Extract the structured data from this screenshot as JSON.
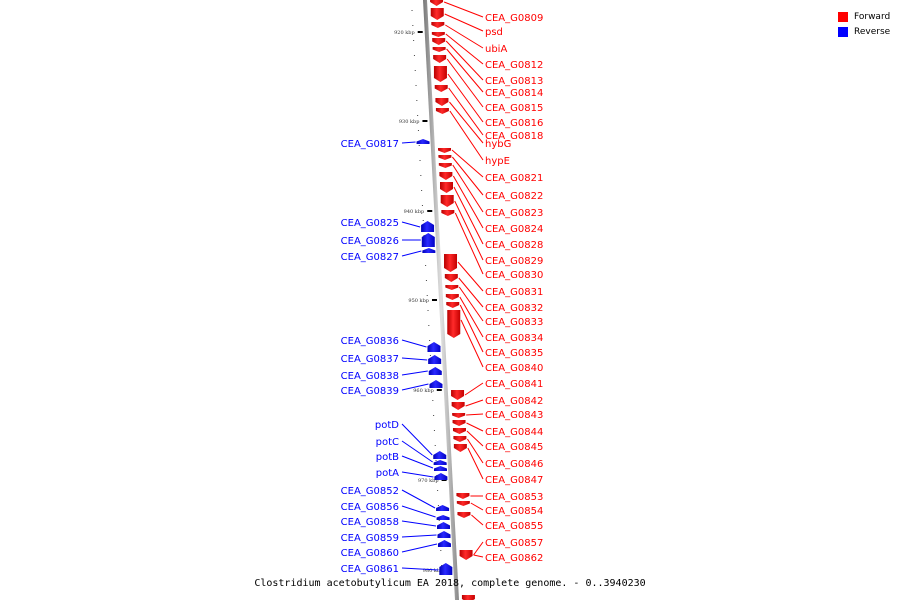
{
  "legend": {
    "forward_label": "Forward",
    "reverse_label": "Reverse",
    "forward_color": "#ff0000",
    "reverse_color": "#0000ff"
  },
  "caption": "Clostridium acetobutylicum EA 2018, complete genome. - 0..3940230",
  "ticks": [
    "920 kbp",
    "930 kbp",
    "940 kbp",
    "950 kbp",
    "960 kbp",
    "970 kbp",
    "980 kbp"
  ],
  "forward_genes": [
    "CEA_G0809",
    "psd",
    "ubiA",
    "CEA_G0812",
    "CEA_G0813",
    "CEA_G0814",
    "CEA_G0815",
    "CEA_G0816",
    "CEA_G0818",
    "hybG",
    "hypE",
    "CEA_G0821",
    "CEA_G0822",
    "CEA_G0823",
    "CEA_G0824",
    "CEA_G0828",
    "CEA_G0829",
    "CEA_G0830",
    "CEA_G0831",
    "CEA_G0832",
    "CEA_G0833",
    "CEA_G0834",
    "CEA_G0835",
    "CEA_G0840",
    "CEA_G0841",
    "CEA_G0842",
    "CEA_G0843",
    "CEA_G0844",
    "CEA_G0845",
    "CEA_G0846",
    "CEA_G0847",
    "CEA_G0853",
    "CEA_G0854",
    "CEA_G0855",
    "CEA_G0857",
    "CEA_G0862"
  ],
  "reverse_genes": [
    "CEA_G0817",
    "CEA_G0825",
    "CEA_G0826",
    "CEA_G0827",
    "CEA_G0836",
    "CEA_G0837",
    "CEA_G0838",
    "CEA_G0839",
    "potD",
    "potC",
    "potB",
    "potA",
    "CEA_G0852",
    "CEA_G0856",
    "CEA_G0858",
    "CEA_G0859",
    "CEA_G0860",
    "CEA_G0861"
  ]
}
